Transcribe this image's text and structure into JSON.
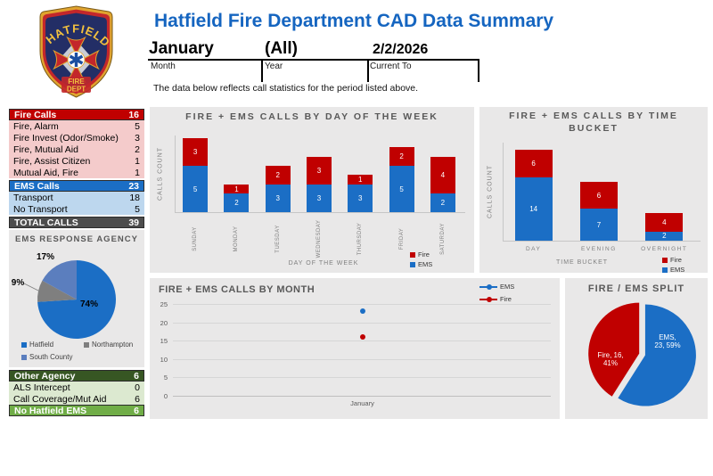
{
  "header": {
    "title": "Hatfield Fire Department CAD Data Summary",
    "filters": [
      {
        "value": "January",
        "label": "Month"
      },
      {
        "value": "(All)",
        "label": "Year"
      },
      {
        "value": "2/2/2026",
        "label": "Current To"
      }
    ],
    "note": "The data below reflects call statistics for the period listed above."
  },
  "logo": {
    "arc_text": "HATFIELD",
    "banner_line1": "FIRE",
    "banner_line2": "DEPT"
  },
  "colors": {
    "accent_blue": "#1B6EC5",
    "accent_red": "#C00000",
    "slate_blue": "#5B7EBE",
    "gray_slice": "#7F7F7F",
    "title_blue": "#1565C0",
    "panel_gray": "#E9E8E8"
  },
  "tables": {
    "fire": {
      "header": {
        "label": "Fire Calls",
        "value": "16"
      },
      "rows": [
        {
          "label": "Fire, Alarm",
          "value": "5"
        },
        {
          "label": "Fire Invest (Odor/Smoke)",
          "value": "3"
        },
        {
          "label": "Fire, Mutual Aid",
          "value": "2"
        },
        {
          "label": "Fire, Assist Citizen",
          "value": "1"
        },
        {
          "label": "Mutual Aid, Fire",
          "value": "1"
        }
      ]
    },
    "ems": {
      "header": {
        "label": "EMS Calls",
        "value": "23"
      },
      "rows": [
        {
          "label": "Transport",
          "value": "18"
        },
        {
          "label": "No Transport",
          "value": "5"
        }
      ]
    },
    "total": {
      "label": "TOTAL CALLS",
      "value": "39"
    },
    "other": {
      "header": {
        "label": "Other Agency",
        "value": "6"
      },
      "rows": [
        {
          "label": "ALS Intercept",
          "value": "0"
        },
        {
          "label": "Call Coverage/Mut Aid",
          "value": "6"
        }
      ],
      "footer": {
        "label": "No Hatfield EMS",
        "value": "6"
      }
    }
  },
  "chart_data": [
    {
      "id": "by_day",
      "type": "bar",
      "stacked": true,
      "title": "FIRE + EMS CALLS BY DAY OF THE WEEK",
      "xlabel": "DAY OF THE WEEK",
      "ylabel": "CALLS COUNT",
      "categories": [
        "SUNDAY",
        "MONDAY",
        "TUESDAY",
        "WEDNESDAY",
        "THURSDAY",
        "FRIDAY",
        "SATURDAY"
      ],
      "series": [
        {
          "name": "EMS",
          "color": "#1B6EC5",
          "values": [
            5,
            2,
            3,
            3,
            3,
            5,
            2
          ]
        },
        {
          "name": "Fire",
          "color": "#C00000",
          "values": [
            3,
            1,
            2,
            3,
            1,
            2,
            4
          ]
        }
      ],
      "legend": [
        "Fire",
        "EMS"
      ],
      "legend_position": "bottom-right",
      "ylim": [
        0,
        8
      ]
    },
    {
      "id": "by_time",
      "type": "bar",
      "stacked": true,
      "title": "FIRE + EMS CALLS BY TIME BUCKET",
      "title_lines": [
        "FIRE + EMS CALLS BY TIME",
        "BUCKET"
      ],
      "xlabel": "TIME BUCKET",
      "ylabel": "CALLS COUNT",
      "categories": [
        "DAY",
        "EVENING",
        "OVERNIGHT"
      ],
      "series": [
        {
          "name": "EMS",
          "color": "#1B6EC5",
          "values": [
            14,
            7,
            2
          ]
        },
        {
          "name": "Fire",
          "color": "#C00000",
          "values": [
            6,
            6,
            4
          ]
        }
      ],
      "legend": [
        "Fire",
        "EMS"
      ],
      "legend_position": "bottom-right",
      "ylim": [
        0,
        20
      ]
    },
    {
      "id": "by_month",
      "type": "line",
      "title": "FIRE + EMS CALLS BY MONTH",
      "x": [
        "January"
      ],
      "series": [
        {
          "name": "EMS",
          "color": "#1B6EC5",
          "values": [
            23
          ]
        },
        {
          "name": "Fire",
          "color": "#C00000",
          "values": [
            16
          ]
        }
      ],
      "ylim": [
        0,
        25
      ],
      "yticks": [
        0,
        5,
        10,
        15,
        20,
        25
      ],
      "grid": true,
      "legend_position": "top-right"
    },
    {
      "id": "ems_agency",
      "type": "pie",
      "title": "EMS RESPONSE AGENCY",
      "slices": [
        {
          "label": "Hatfield",
          "pct": 74,
          "pct_label": "74%",
          "color": "#1B6EC5"
        },
        {
          "label": "Northampton",
          "pct": 9,
          "pct_label": "9%",
          "color": "#7F7F7F"
        },
        {
          "label": "South County",
          "pct": 17,
          "pct_label": "17%",
          "color": "#5B7EBE"
        }
      ],
      "legend_position": "bottom"
    },
    {
      "id": "split",
      "type": "pie",
      "title": "FIRE / EMS SPLIT",
      "slices": [
        {
          "label": "EMS",
          "value": 23,
          "pct": 59,
          "color": "#1B6EC5",
          "label_lines": [
            "EMS,",
            "23, 59%"
          ]
        },
        {
          "label": "Fire",
          "value": 16,
          "pct": 41,
          "color": "#C00000",
          "label_lines": [
            "Fire, 16,",
            "41%"
          ]
        }
      ]
    }
  ]
}
